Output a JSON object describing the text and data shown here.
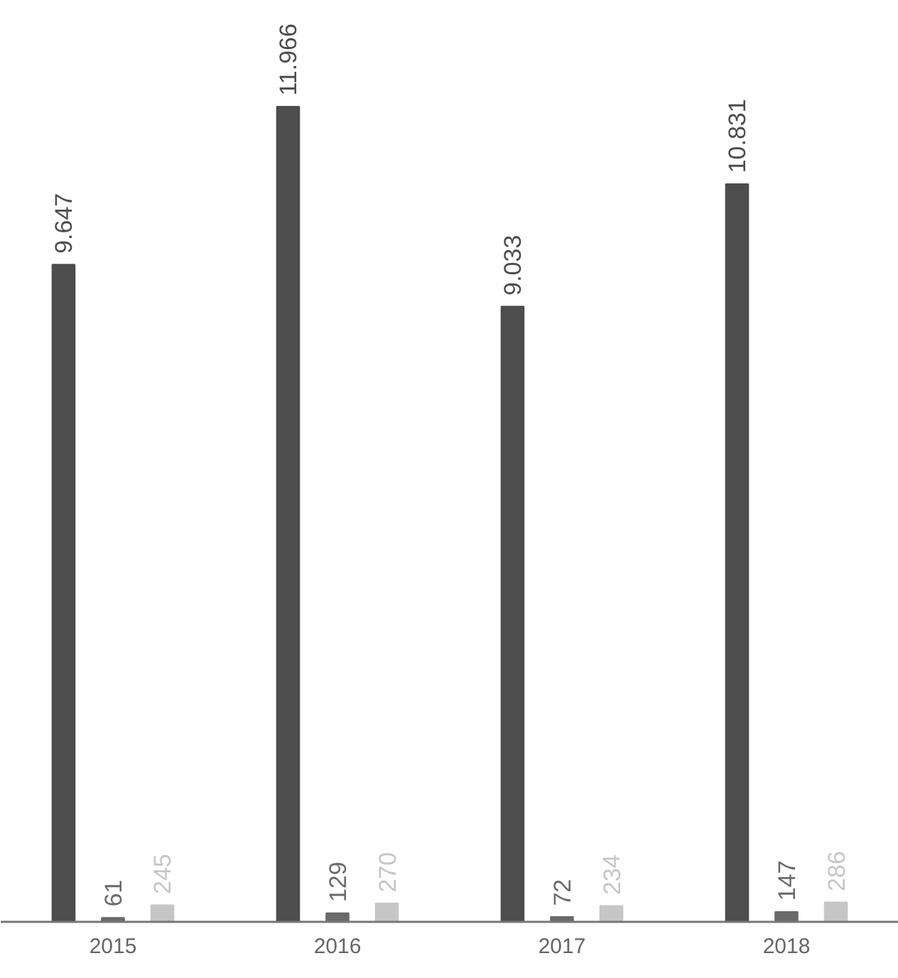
{
  "chart_data": {
    "type": "bar",
    "categories": [
      "2015",
      "2016",
      "2017",
      "2018"
    ],
    "series": [
      {
        "color": "#4d4d4d",
        "values": [
          9647,
          11966,
          9033,
          10831
        ],
        "value_labels": [
          "9.647",
          "11.966",
          "9.033",
          "10.831"
        ]
      },
      {
        "color": "#6a6a6a",
        "values": [
          61,
          129,
          72,
          147
        ],
        "value_labels": [
          "61",
          "129",
          "72",
          "147"
        ]
      },
      {
        "color": "#c6c6c6",
        "values": [
          245,
          270,
          234,
          286
        ],
        "value_labels": [
          "245",
          "270",
          "234",
          "286"
        ]
      }
    ],
    "grid": false
  }
}
